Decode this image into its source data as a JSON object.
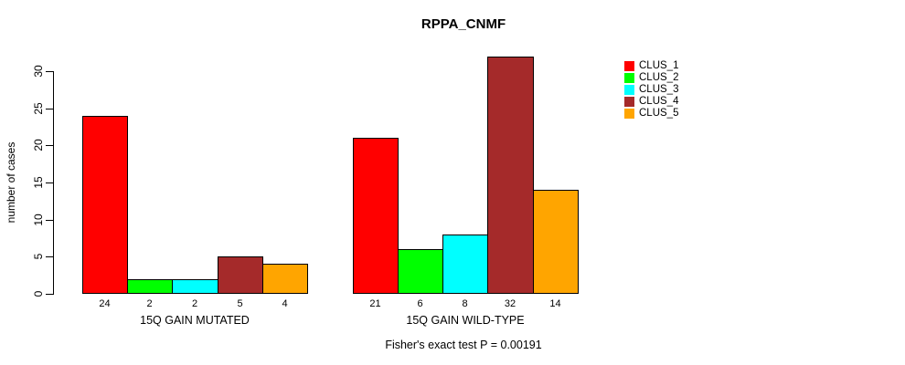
{
  "chart_data": {
    "type": "bar",
    "title": "RPPA_CNMF",
    "ylabel": "number of cases",
    "xlabel": "",
    "ylim": [
      0,
      30
    ],
    "yticks": [
      0,
      5,
      10,
      15,
      20,
      25,
      30
    ],
    "grid": false,
    "legend_position": "right",
    "categories": [
      "15Q GAIN MUTATED",
      "15Q GAIN WILD-TYPE"
    ],
    "series": [
      {
        "name": "CLUS_1",
        "color": "#ff0000",
        "values": [
          24,
          21
        ]
      },
      {
        "name": "CLUS_2",
        "color": "#00ff00",
        "values": [
          2,
          6
        ]
      },
      {
        "name": "CLUS_3",
        "color": "#00ffff",
        "values": [
          2,
          8
        ]
      },
      {
        "name": "CLUS_4",
        "color": "#a52a2a",
        "values": [
          5,
          32
        ]
      },
      {
        "name": "CLUS_5",
        "color": "#ffa500",
        "values": [
          4,
          14
        ]
      }
    ],
    "bar_labels": [
      [
        "24",
        "2",
        "2",
        "5",
        "4"
      ],
      [
        "21",
        "6",
        "8",
        "32",
        "14"
      ]
    ],
    "annotation": "Fisher's exact test P = 0.00191"
  }
}
